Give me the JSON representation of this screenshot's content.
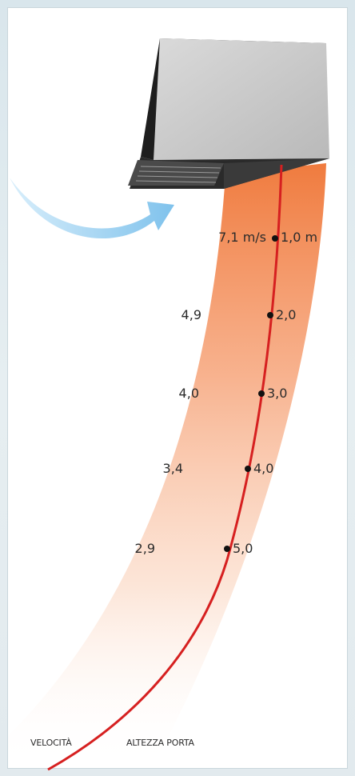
{
  "diagram": {
    "labels": {
      "velocity": "VELOCITÀ",
      "door_height": "ALTEZZA PORTA"
    },
    "measurements": [
      {
        "velocity": "7,1 m/s",
        "height": "1,0 m"
      },
      {
        "velocity": "4,9",
        "height": "2,0"
      },
      {
        "velocity": "4,0",
        "height": "3,0"
      },
      {
        "velocity": "3,4",
        "height": "4,0"
      },
      {
        "velocity": "2,9",
        "height": "5,0"
      }
    ],
    "colors": {
      "airflow_start": "#f07a3c",
      "curve": "#d62020",
      "intake_arrow": "#8fc9ee",
      "unit_body": "#c9c9c9",
      "unit_dark": "#1e1e1e"
    }
  }
}
